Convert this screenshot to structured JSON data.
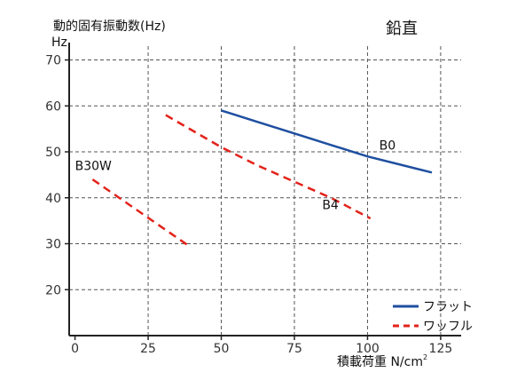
{
  "chart_data": {
    "type": "line",
    "title": "動的固有振動数(Hz)",
    "orientation": "鉛直",
    "ylabel": "Hz",
    "xlabel": "積載荷重 N/cm",
    "xlabel_sup": "2",
    "xlim": [
      -2,
      132
    ],
    "ylim": [
      10,
      73
    ],
    "xticks": [
      0,
      25,
      50,
      75,
      100,
      125
    ],
    "yticks": [
      20,
      30,
      40,
      50,
      60,
      70
    ],
    "grid": "vertical and horizontal dashed",
    "legend_position": "bottom-right",
    "legend": [
      {
        "label": "フラット",
        "color": "#1f4fa0",
        "dash": false
      },
      {
        "label": "ワッフル",
        "color": "#e2231a",
        "dash": true
      }
    ],
    "series": [
      {
        "name": "B0",
        "style": "フラット",
        "color": "#1f4fa0",
        "points": [
          [
            50,
            59
          ],
          [
            62.5,
            56.5
          ],
          [
            75,
            54
          ],
          [
            87.5,
            51.5
          ],
          [
            100,
            49
          ],
          [
            112.5,
            47
          ],
          [
            122,
            45.5
          ]
        ]
      },
      {
        "name": "B4",
        "style": "ワッフル",
        "color": "#e2231a",
        "points": [
          [
            31,
            58
          ],
          [
            50,
            51
          ],
          [
            62.5,
            47
          ],
          [
            75,
            43.5
          ],
          [
            87.5,
            40
          ],
          [
            101,
            35.5
          ]
        ]
      },
      {
        "name": "B30W",
        "style": "ワッフル",
        "color": "#e2231a",
        "points": [
          [
            6,
            44
          ],
          [
            39,
            29.5
          ]
        ]
      }
    ],
    "annotations": [
      {
        "text": "B0",
        "x": 104,
        "y": 50.5
      },
      {
        "text": "B4",
        "x": 84.5,
        "y": 37.5
      },
      {
        "text": "B30W",
        "x": 0,
        "y": 46
      }
    ]
  }
}
